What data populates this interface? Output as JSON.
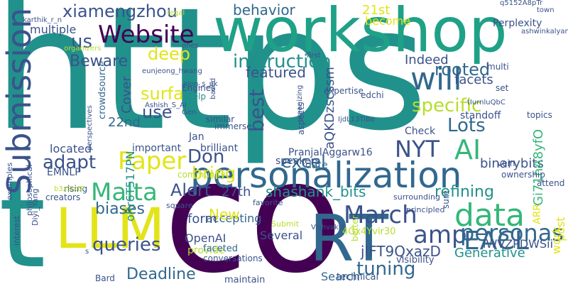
{
  "palette": {
    "dark_purple": "#440154",
    "indigo": "#3b528b",
    "blue": "#31688e",
    "teal": "#21918c",
    "green_teal": "#1fa187",
    "green": "#35b779",
    "light_green": "#6ece58",
    "yellow_green": "#b5de2b",
    "yellow": "#e2e418"
  },
  "words": [
    {
      "text": "https",
      "color": "#21918c"
    },
    {
      "text": "co",
      "color": "#440154"
    },
    {
      "text": "t",
      "color": "#21918c"
    },
    {
      "text": "workshop",
      "color": "#1fa187"
    },
    {
      "text": "RT",
      "color": "#31688e"
    },
    {
      "text": "LLM",
      "color": "#e2e418"
    },
    {
      "text": "personalization",
      "color": "#31688e"
    },
    {
      "text": "Submission",
      "color": "#3b528b"
    },
    {
      "text": "Website",
      "color": "#440154"
    },
    {
      "text": "Paper",
      "color": "#e2e418"
    },
    {
      "text": "Malta",
      "color": "#35b779"
    },
    {
      "text": "AI",
      "color": "#35b779"
    },
    {
      "text": "March",
      "color": "#3b528b"
    },
    {
      "text": "will",
      "color": "#31688e"
    },
    {
      "text": "data",
      "color": "#35b779"
    },
    {
      "text": "EACL",
      "color": "#31688e"
    },
    {
      "text": "amp",
      "color": "#3b528b"
    },
    {
      "text": "personas",
      "color": "#31688e"
    },
    {
      "text": "NYT",
      "color": "#3b528b"
    },
    {
      "text": "specific",
      "color": "#b5de2b"
    },
    {
      "text": "instruction",
      "color": "#21918c"
    },
    {
      "text": "queries",
      "color": "#3b528b"
    },
    {
      "text": "tuning",
      "color": "#31688e"
    },
    {
      "text": "xiamengzhou",
      "color": "#3b528b"
    },
    {
      "text": "behavior",
      "color": "#31688e"
    },
    {
      "text": "rooted",
      "color": "#31688e"
    },
    {
      "text": "Beware",
      "color": "#3b528b"
    },
    {
      "text": "deep",
      "color": "#e2e418"
    },
    {
      "text": "us",
      "color": "#3b528b"
    },
    {
      "text": "multiple",
      "color": "#3b528b"
    },
    {
      "text": "biases",
      "color": "#31688e"
    },
    {
      "text": "Deadline",
      "color": "#31688e"
    },
    {
      "text": "shashank_bits",
      "color": "#21918c"
    },
    {
      "text": "refining",
      "color": "#21918c"
    },
    {
      "text": "Lots",
      "color": "#31688e"
    },
    {
      "text": "use",
      "color": "#3b528b"
    },
    {
      "text": "best",
      "color": "#3b528b"
    },
    {
      "text": "adapt",
      "color": "#3b528b"
    },
    {
      "text": "bring",
      "color": "#e2e418"
    },
    {
      "text": "Alert",
      "color": "#3b528b"
    },
    {
      "text": "Don",
      "color": "#3b528b"
    },
    {
      "text": "excel",
      "color": "#31688e"
    },
    {
      "text": "surfa",
      "color": "#e2e418"
    },
    {
      "text": "featured",
      "color": "#3b528b"
    },
    {
      "text": "Indeed",
      "color": "#3b528b"
    },
    {
      "text": "facets",
      "color": "#3b528b"
    },
    {
      "text": "binarybits",
      "color": "#3b528b"
    },
    {
      "text": "Gi71hA8yfO",
      "color": "#35b779"
    },
    {
      "text": "aQKDzscssm",
      "color": "#3b528b"
    },
    {
      "text": "oRr6T517PN",
      "color": "#21918c"
    },
    {
      "text": "jlFT9QxazD",
      "color": "#3b528b"
    },
    {
      "text": "lWVZPDWSii",
      "color": "#3b528b"
    },
    {
      "text": "Generative",
      "color": "#21918c"
    },
    {
      "text": "accepting",
      "color": "#31688e"
    },
    {
      "text": "27th",
      "color": "#3b528b"
    },
    {
      "text": "New",
      "color": "#e2e418"
    },
    {
      "text": "form",
      "color": "#3b528b"
    },
    {
      "text": "OpenAI",
      "color": "#3b528b"
    },
    {
      "text": "Several",
      "color": "#3b528b"
    },
    {
      "text": "provide",
      "color": "#b5de2b"
    },
    {
      "text": "Search",
      "color": "#31688e"
    },
    {
      "text": "post",
      "color": "#e2e418"
    },
    {
      "text": "work",
      "color": "#e2e418"
    },
    {
      "text": "ARR",
      "color": "#e2e418"
    },
    {
      "text": "EMNLP",
      "color": "#3b528b"
    },
    {
      "text": "located",
      "color": "#3b528b"
    },
    {
      "text": "important",
      "color": "#3b528b"
    },
    {
      "text": "brilliant",
      "color": "#3b528b"
    },
    {
      "text": "22nd",
      "color": "#31688e"
    },
    {
      "text": "Cover",
      "color": "#3b528b"
    },
    {
      "text": "21st",
      "color": "#e2e418"
    },
    {
      "text": "become",
      "color": "#e2e418"
    },
    {
      "text": "Perplexity",
      "color": "#3b528b"
    },
    {
      "text": "standoff",
      "color": "#3b528b"
    },
    {
      "text": "Check",
      "color": "#3b528b"
    },
    {
      "text": "PranjalAggarw16",
      "color": "#3b528b"
    },
    {
      "text": "date",
      "color": "#31688e"
    },
    {
      "text": "speakers",
      "color": "#3b528b"
    },
    {
      "text": "Jan",
      "color": "#3b528b"
    },
    {
      "text": "faceted",
      "color": "#31688e"
    },
    {
      "text": "conversations",
      "color": "#3b528b"
    },
    {
      "text": "maintain",
      "color": "#3b528b"
    },
    {
      "text": "technical",
      "color": "#3b528b"
    },
    {
      "text": "visibility",
      "color": "#3b528b"
    },
    {
      "text": "4Gx4Yvir30",
      "color": "#b5de2b"
    },
    {
      "text": "Bard",
      "color": "#3b528b"
    },
    {
      "text": "rising",
      "color": "#3b528b"
    },
    {
      "text": "creators",
      "color": "#3b528b"
    },
    {
      "text": "community",
      "color": "#b5de2b"
    },
    {
      "text": "crowdsource",
      "color": "#31688e"
    },
    {
      "text": "Engines",
      "color": "#3b528b"
    },
    {
      "text": "help",
      "color": "#21918c"
    },
    {
      "text": "similar",
      "color": "#3b528b"
    },
    {
      "text": "immerse",
      "color": "#3b528b"
    },
    {
      "text": "aspects",
      "color": "#3b528b"
    },
    {
      "text": "expertise",
      "color": "#3b528b"
    },
    {
      "text": "edchi",
      "color": "#3b528b"
    },
    {
      "text": "set",
      "color": "#3b528b"
    },
    {
      "text": "multi",
      "color": "#3b528b"
    },
    {
      "text": "topics",
      "color": "#3b528b"
    },
    {
      "text": "vein",
      "color": "#3b528b"
    },
    {
      "text": "ownership",
      "color": "#3b528b"
    },
    {
      "text": "attend",
      "color": "#3b528b"
    },
    {
      "text": "sure",
      "color": "#3b528b"
    },
    {
      "text": "better",
      "color": "#b5de2b"
    },
    {
      "text": "principled",
      "color": "#3b528b"
    },
    {
      "text": "surrounding",
      "color": "#3b528b"
    },
    {
      "text": "Submit",
      "color": "#b5de2b"
    },
    {
      "text": "favorite",
      "color": "#3b528b"
    },
    {
      "text": "square",
      "color": "#3b528b"
    },
    {
      "text": "examples",
      "color": "#3b528b"
    },
    {
      "text": "interest",
      "color": "#3b528b"
    },
    {
      "text": "philosophical",
      "color": "#3b528b"
    },
    {
      "text": "Diyi_Yang",
      "color": "#3b528b"
    },
    {
      "text": "VishvakM",
      "color": "#3b528b"
    },
    {
      "text": "karthik_r_n",
      "color": "#3b528b"
    },
    {
      "text": "eunjeong_hwang",
      "color": "#3b528b"
    },
    {
      "text": "Ashish_S_AI",
      "color": "#3b528b"
    },
    {
      "text": "joon_s_pk",
      "color": "#3b528b"
    },
    {
      "text": "ashwinkalyan7",
      "color": "#3b528b"
    },
    {
      "text": "q5152A8pTr",
      "color": "#3b528b"
    },
    {
      "text": "tIurnluQbC",
      "color": "#3b528b"
    },
    {
      "text": "IjdL13TiBe",
      "color": "#3b528b"
    },
    {
      "text": "b3zSixtP",
      "color": "#b5de2b"
    },
    {
      "text": "legal",
      "color": "#b5de2b"
    },
    {
      "text": "town",
      "color": "#3b528b"
    },
    {
      "text": "first",
      "color": "#3b528b"
    },
    {
      "text": "ones",
      "color": "#3b528b"
    },
    {
      "text": "organizers",
      "color": "#b5de2b"
    },
    {
      "text": "organizing",
      "color": "#3b528b"
    },
    {
      "text": "based",
      "color": "#3b528b"
    },
    {
      "text": "perspectives",
      "color": "#3b528b"
    },
    {
      "text": "Gen",
      "color": "#3b528b"
    },
    {
      "text": "s",
      "color": "#3b528b"
    }
  ]
}
